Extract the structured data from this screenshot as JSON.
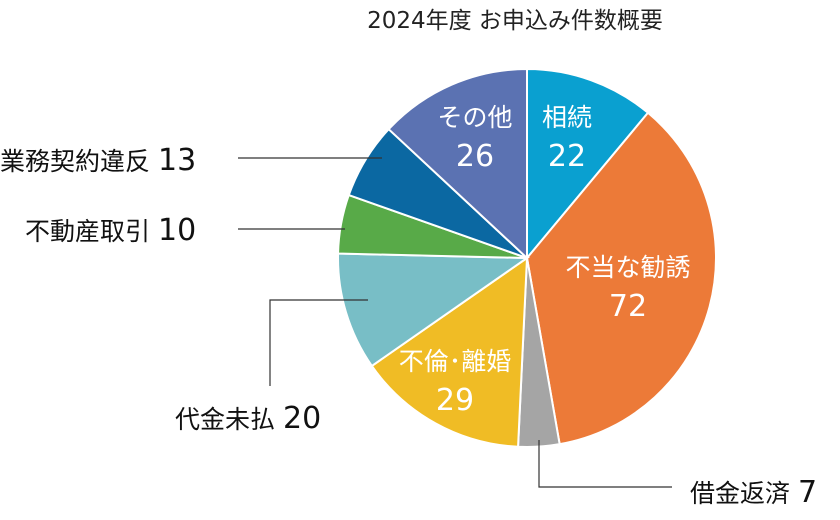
{
  "chart_data": {
    "type": "pie",
    "title": "2024年度  お申込み件数概要",
    "start": "top",
    "direction": "clockwise",
    "slices": [
      {
        "label": "相続",
        "value": 22,
        "color": "#0aa0d0"
      },
      {
        "label": "不当な勧誘",
        "value": 72,
        "color": "#ec7a38"
      },
      {
        "label": "借金返済",
        "value": 7,
        "color": "#a5a5a5"
      },
      {
        "label": "不倫･離婚",
        "value": 29,
        "color": "#f0bc25"
      },
      {
        "label": "代金未払",
        "value": 20,
        "color": "#78bec6"
      },
      {
        "label": "不動産取引",
        "value": 10,
        "color": "#58aa48"
      },
      {
        "label": "業務契約違反",
        "value": 13,
        "color": "#0b68a2"
      },
      {
        "label": "その他",
        "value": 26,
        "color": "#5b72b2"
      }
    ]
  }
}
